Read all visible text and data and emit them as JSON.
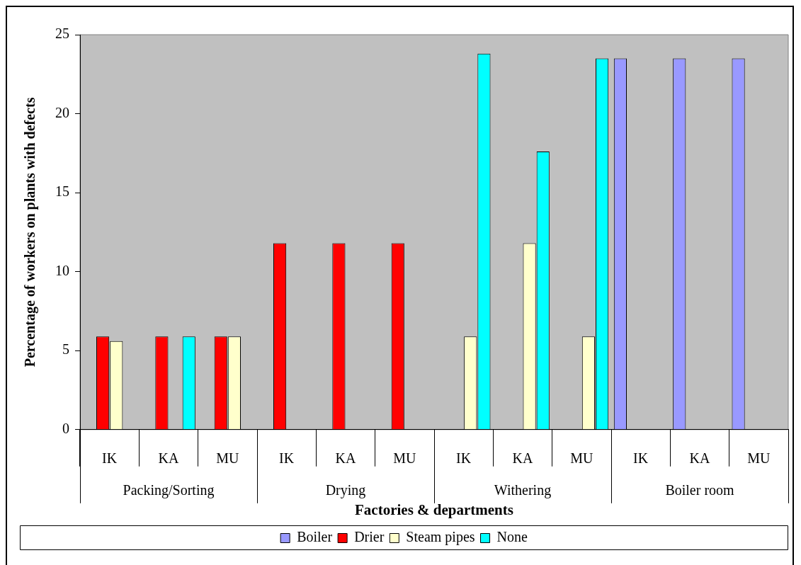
{
  "chart_data": {
    "type": "bar",
    "xlabel": "Factories & departments",
    "ylabel": "Percentage of workers on plants with defects",
    "categories": [
      "IK",
      "KA",
      "MU",
      "IK",
      "KA",
      "MU",
      "IK",
      "KA",
      "MU",
      "IK",
      "KA",
      "MU"
    ],
    "annotations": [
      "Packing/Sorting",
      "Drying",
      "Withering",
      "Boiler room"
    ],
    "series": [
      {
        "name": "Boiler",
        "color": "#9999ff",
        "values": [
          null,
          null,
          null,
          null,
          null,
          null,
          null,
          null,
          null,
          23.5,
          23.5,
          23.5
        ]
      },
      {
        "name": "Drier",
        "color": "#ff0000",
        "values": [
          5.9,
          5.9,
          5.9,
          11.8,
          11.8,
          11.8,
          null,
          null,
          null,
          null,
          null,
          null
        ]
      },
      {
        "name": "Steam pipes",
        "color": "#ffffcc",
        "values": [
          5.6,
          null,
          5.9,
          null,
          null,
          null,
          5.9,
          11.8,
          5.9,
          null,
          null,
          null
        ]
      },
      {
        "name": "None",
        "color": "#00ffff",
        "values": [
          null,
          5.9,
          null,
          null,
          null,
          null,
          23.8,
          17.6,
          23.5,
          null,
          null,
          null
        ]
      }
    ],
    "ylim": [
      0,
      25
    ],
    "yticks": [
      0,
      5,
      10,
      15,
      20,
      25
    ],
    "legend": "bottom"
  }
}
